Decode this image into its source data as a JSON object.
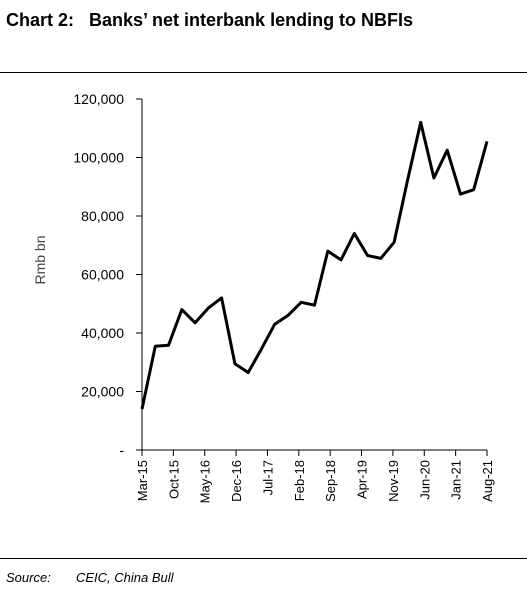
{
  "chart_data": {
    "type": "line",
    "title": "Chart 2:   Banks’ net interbank lending to NBFIs",
    "ylabel": "Rmb bn",
    "xlabel": "",
    "ylim": [
      0,
      120000
    ],
    "yticks": [
      0,
      20000,
      40000,
      60000,
      80000,
      100000,
      120000
    ],
    "ytick_labels": [
      "-",
      "20,000",
      "40,000",
      "60,000",
      "80,000",
      "100,000",
      "120,000"
    ],
    "xtick_labels": [
      "Mar-15",
      "Oct-15",
      "May-16",
      "Dec-16",
      "Jul-17",
      "Feb-18",
      "Sep-18",
      "Apr-19",
      "Nov-19",
      "Jun-20",
      "Jan-21",
      "Aug-21"
    ],
    "x": [
      "Mar-15",
      "Jun-15",
      "Sep-15",
      "Dec-15",
      "Mar-16",
      "Jun-16",
      "Sep-16",
      "Dec-16",
      "Mar-17",
      "Jun-17",
      "Sep-17",
      "Dec-17",
      "Mar-18",
      "Jun-18",
      "Sep-18",
      "Dec-18",
      "Mar-19",
      "Jun-19",
      "Sep-19",
      "Dec-19",
      "Mar-20",
      "Jun-20",
      "Sep-20",
      "Dec-20",
      "Mar-21",
      "Jun-21",
      "Sep-21"
    ],
    "series": [
      {
        "values": [
          14000,
          35500,
          35800,
          48000,
          43500,
          48500,
          52000,
          29500,
          26500,
          34500,
          43000,
          46000,
          50500,
          49500,
          68000,
          65000,
          74000,
          66500,
          65500,
          71000,
          92000,
          112000,
          93000,
          102500,
          87500,
          89000,
          105500
        ]
      }
    ],
    "grid": false,
    "legend": "none"
  },
  "source": {
    "label": "Source:",
    "text": "CEIC, China Bull"
  }
}
